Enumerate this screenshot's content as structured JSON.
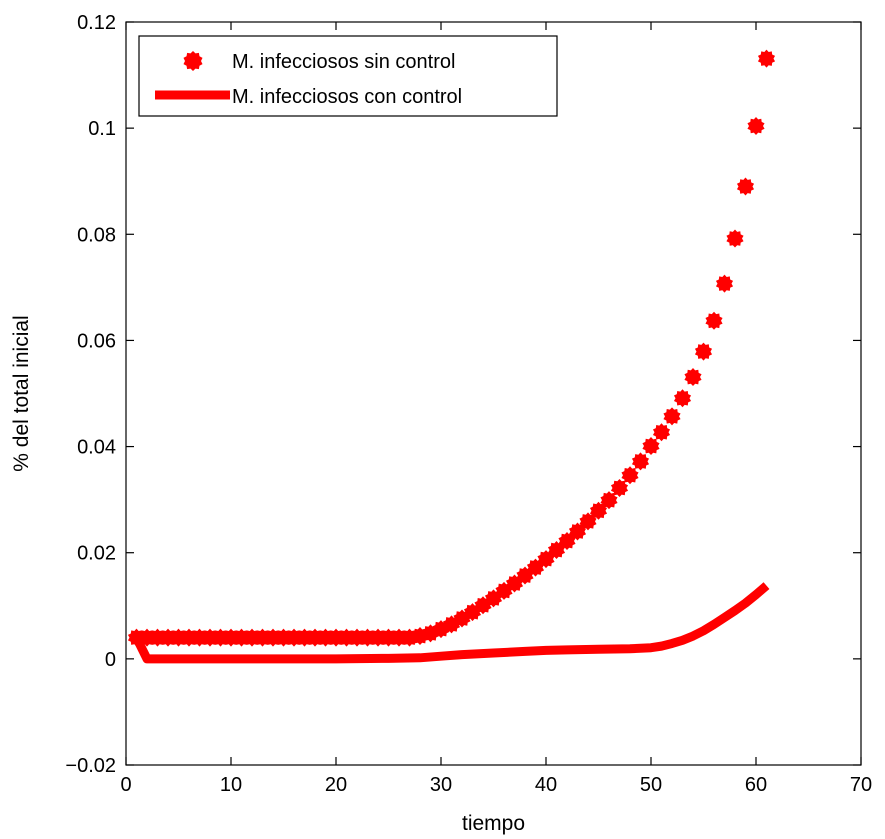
{
  "chart_data": {
    "type": "line",
    "xlabel": "tiempo",
    "ylabel": "% del total inicial",
    "xlim": [
      0,
      70
    ],
    "ylim": [
      -0.02,
      0.12
    ],
    "x_ticks": [
      0,
      10,
      20,
      30,
      40,
      50,
      60,
      70
    ],
    "x_tick_labels": [
      "0",
      "10",
      "20",
      "30",
      "40",
      "50",
      "60",
      "70"
    ],
    "y_ticks": [
      -0.02,
      0,
      0.02,
      0.04,
      0.06,
      0.08,
      0.1,
      0.12
    ],
    "y_tick_labels": [
      "−0.02",
      "0",
      "0.02",
      "0.04",
      "0.06",
      "0.08",
      "0.1",
      "0.12"
    ],
    "grid": false,
    "legend_position": "top-left",
    "color": "#ff0000",
    "series": [
      {
        "name": "M. infecciosos sin control",
        "style": "markers",
        "x": [
          1,
          2,
          3,
          4,
          5,
          6,
          7,
          8,
          9,
          10,
          11,
          12,
          13,
          14,
          15,
          16,
          17,
          18,
          19,
          20,
          21,
          22,
          23,
          24,
          25,
          26,
          27,
          28,
          29,
          30,
          31,
          32,
          33,
          34,
          35,
          36,
          37,
          38,
          39,
          40,
          41,
          42,
          43,
          44,
          45,
          46,
          47,
          48,
          49,
          50,
          51,
          52,
          53,
          54,
          55,
          56,
          57,
          58,
          59,
          60,
          61
        ],
        "y": [
          0.004,
          0.004,
          0.004,
          0.004,
          0.004,
          0.004,
          0.004,
          0.004,
          0.004,
          0.004,
          0.004,
          0.004,
          0.004,
          0.004,
          0.004,
          0.004,
          0.004,
          0.004,
          0.004,
          0.004,
          0.004,
          0.004,
          0.004,
          0.004,
          0.004,
          0.004,
          0.004,
          0.0043,
          0.0048,
          0.0056,
          0.0065,
          0.0076,
          0.0088,
          0.0101,
          0.0114,
          0.0128,
          0.0142,
          0.0157,
          0.0172,
          0.0188,
          0.0205,
          0.0222,
          0.024,
          0.0259,
          0.0279,
          0.0299,
          0.0322,
          0.0346,
          0.0372,
          0.0401,
          0.0427,
          0.0457,
          0.0491,
          0.0531,
          0.0579,
          0.0637,
          0.0707,
          0.0792,
          0.089,
          0.1004,
          0.1131
        ]
      },
      {
        "name": "M. infecciosos con control",
        "style": "line",
        "x": [
          1,
          1.5,
          2,
          3,
          5,
          10,
          15,
          20,
          25,
          28,
          30,
          32,
          35,
          38,
          40,
          42,
          45,
          48,
          50,
          51,
          52,
          53,
          54,
          55,
          56,
          57,
          58,
          59,
          60,
          61
        ],
        "y": [
          0.004,
          0.002,
          0,
          0,
          0,
          0,
          0,
          0,
          0.0001,
          0.0002,
          0.0005,
          0.0008,
          0.0011,
          0.0014,
          0.0016,
          0.0017,
          0.0018,
          0.0019,
          0.0021,
          0.0024,
          0.0029,
          0.0035,
          0.0043,
          0.0053,
          0.0065,
          0.0078,
          0.0091,
          0.0105,
          0.0121,
          0.0138
        ]
      }
    ]
  }
}
